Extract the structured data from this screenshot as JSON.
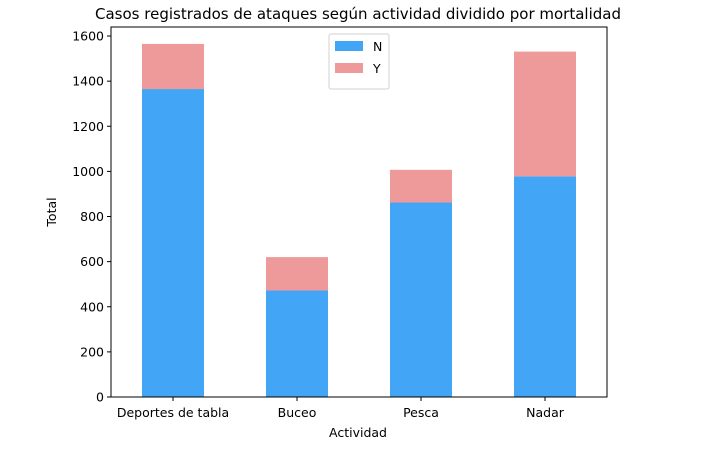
{
  "chart_data": {
    "type": "bar",
    "stacked": true,
    "title": "Casos registrados de ataques según actividad dividido por mortalidad",
    "xlabel": "Actividad",
    "ylabel": "Total",
    "categories": [
      "Deportes de tabla",
      "Buceo",
      "Pesca",
      "Nadar"
    ],
    "series": [
      {
        "name": "N",
        "color": "#42a5f5",
        "values": [
          1365,
          472,
          862,
          978
        ]
      },
      {
        "name": "Y",
        "color": "#ef9a9a",
        "values": [
          200,
          148,
          145,
          553
        ]
      }
    ],
    "ylim": [
      0,
      1640
    ],
    "yticks": [
      0,
      200,
      400,
      600,
      800,
      1000,
      1200,
      1400,
      1600
    ],
    "legend_position": "top-center",
    "grid": false
  }
}
